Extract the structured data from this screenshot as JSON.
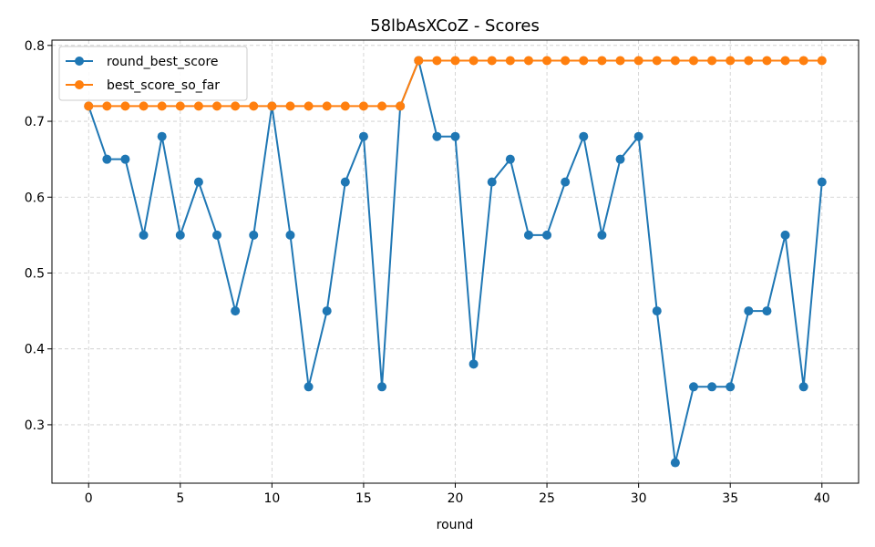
{
  "chart_data": {
    "type": "line",
    "title": "58lbAsXCoZ - Scores",
    "xlabel": "round",
    "ylabel": "",
    "xlim": [
      -2,
      42
    ],
    "ylim": [
      0.223,
      0.807
    ],
    "xticks": [
      0,
      5,
      10,
      15,
      20,
      25,
      30,
      35,
      40
    ],
    "yticks": [
      0.3,
      0.4,
      0.5,
      0.6,
      0.7,
      0.8
    ],
    "xtick_labels": [
      "0",
      "5",
      "10",
      "15",
      "20",
      "25",
      "30",
      "35",
      "40"
    ],
    "ytick_labels": [
      "0.3",
      "0.4",
      "0.5",
      "0.6",
      "0.7",
      "0.8"
    ],
    "grid": true,
    "legend_position": "top-left",
    "x": [
      0,
      1,
      2,
      3,
      4,
      5,
      6,
      7,
      8,
      9,
      10,
      11,
      12,
      13,
      14,
      15,
      16,
      17,
      18,
      19,
      20,
      21,
      22,
      23,
      24,
      25,
      26,
      27,
      28,
      29,
      30,
      31,
      32,
      33,
      34,
      35,
      36,
      37,
      38,
      39,
      40
    ],
    "series": [
      {
        "name": "round_best_score",
        "color": "#1f77b4",
        "values": [
          0.72,
          0.65,
          0.65,
          0.55,
          0.68,
          0.55,
          0.62,
          0.55,
          0.45,
          0.55,
          0.72,
          0.55,
          0.35,
          0.45,
          0.62,
          0.68,
          0.35,
          0.72,
          0.78,
          0.68,
          0.68,
          0.38,
          0.62,
          0.65,
          0.55,
          0.55,
          0.62,
          0.68,
          0.55,
          0.65,
          0.68,
          0.45,
          0.25,
          0.35,
          0.35,
          0.35,
          0.45,
          0.45,
          0.55,
          0.35,
          0.62
        ]
      },
      {
        "name": "best_score_so_far",
        "color": "#ff7f0e",
        "values": [
          0.72,
          0.72,
          0.72,
          0.72,
          0.72,
          0.72,
          0.72,
          0.72,
          0.72,
          0.72,
          0.72,
          0.72,
          0.72,
          0.72,
          0.72,
          0.72,
          0.72,
          0.72,
          0.78,
          0.78,
          0.78,
          0.78,
          0.78,
          0.78,
          0.78,
          0.78,
          0.78,
          0.78,
          0.78,
          0.78,
          0.78,
          0.78,
          0.78,
          0.78,
          0.78,
          0.78,
          0.78,
          0.78,
          0.78,
          0.78,
          0.78
        ]
      }
    ]
  }
}
